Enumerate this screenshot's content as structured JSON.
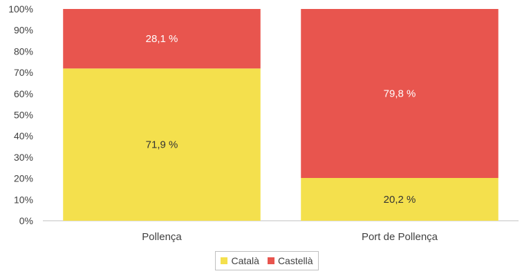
{
  "chart_data": {
    "type": "bar",
    "stacked": true,
    "categories": [
      "Pollença",
      "Port de Pollença"
    ],
    "series": [
      {
        "name": "Català",
        "color": "#f4e04d",
        "values": [
          71.9,
          20.2
        ],
        "labels": [
          "71,9 %",
          "20,2 %"
        ]
      },
      {
        "name": "Castellà",
        "color": "#e8554e",
        "values": [
          28.1,
          79.8
        ],
        "labels": [
          "28,1 %",
          "79,8 %"
        ]
      }
    ],
    "ylim": [
      0,
      100
    ],
    "yticks": [
      "0%",
      "10%",
      "20%",
      "30%",
      "40%",
      "50%",
      "60%",
      "70%",
      "80%",
      "90%",
      "100%"
    ],
    "grid": false,
    "legend": "bottom-center"
  }
}
